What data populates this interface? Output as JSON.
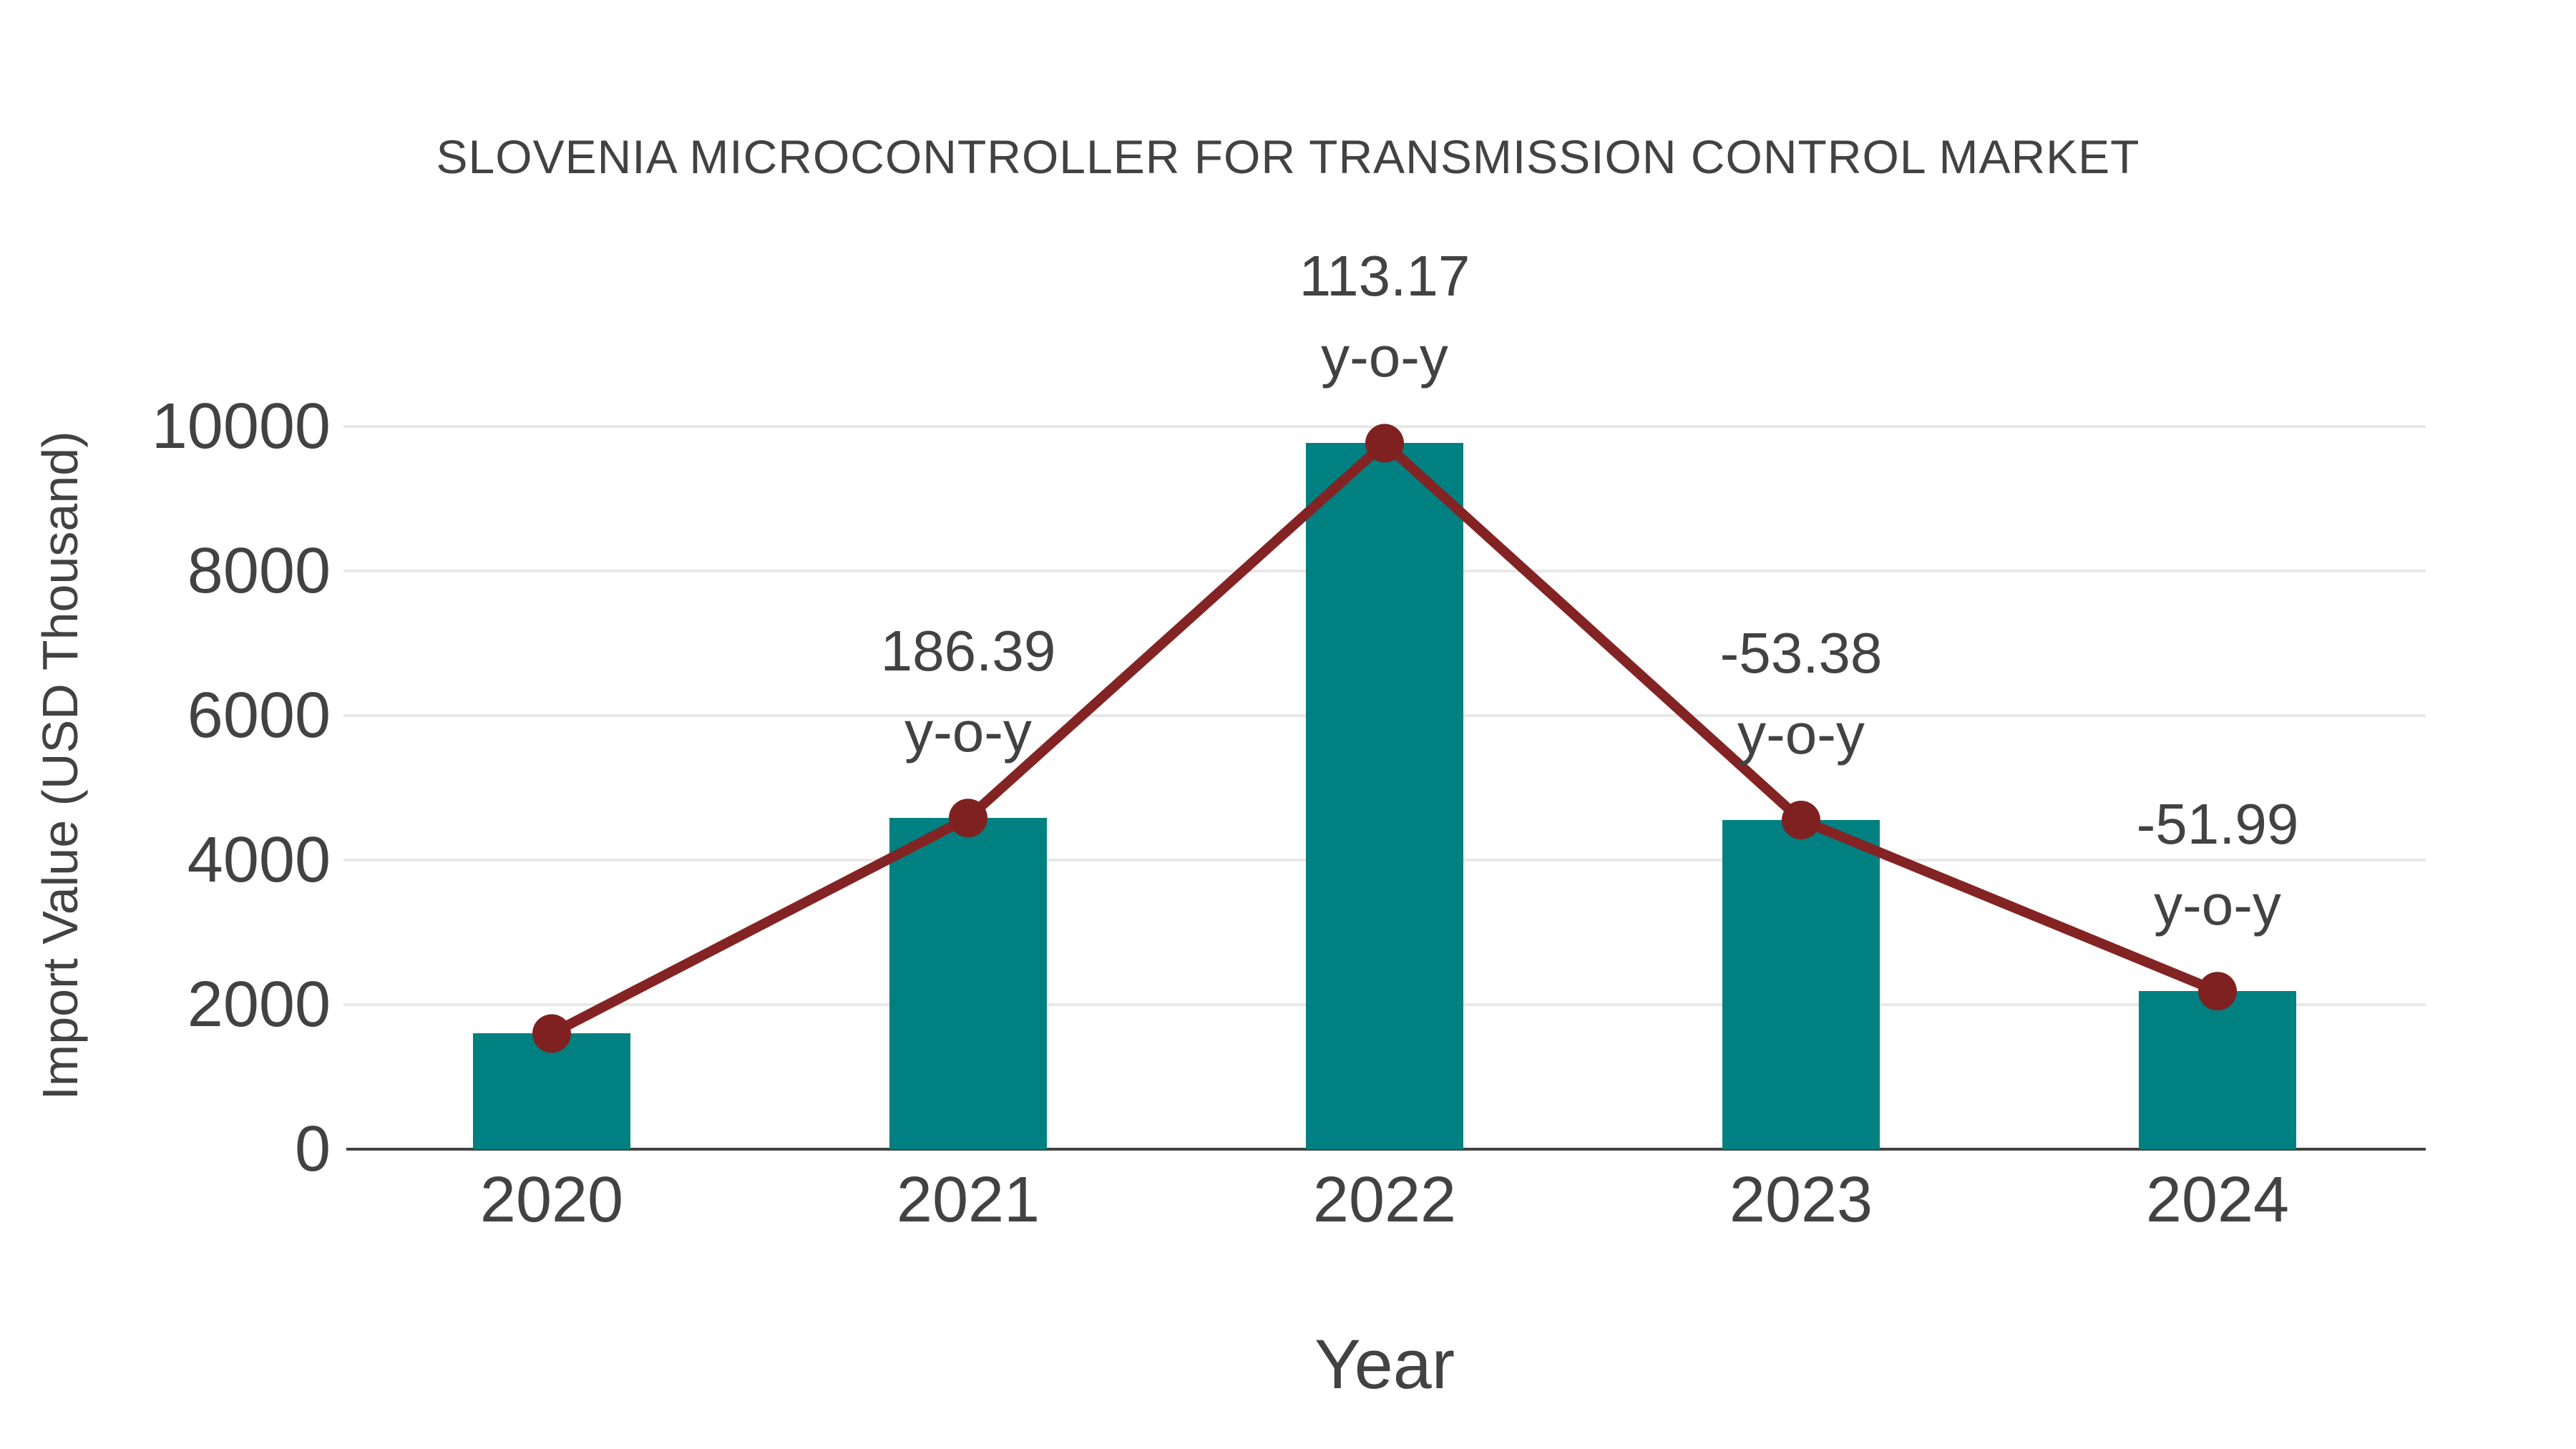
{
  "chart_data": {
    "type": "bar",
    "title": "SLOVENIA MICROCONTROLLER FOR TRANSMISSION CONTROL MARKET",
    "xlabel": "Year",
    "ylabel": "Import Value (USD Thousand)",
    "categories": [
      "2020",
      "2021",
      "2022",
      "2023",
      "2024"
    ],
    "series": [
      {
        "name": "Import Value",
        "type": "bar",
        "values": [
          1600,
          4582,
          9768,
          4554,
          2186
        ]
      },
      {
        "name": "y-o-y growth",
        "type": "line",
        "values": [
          1600,
          4582,
          9768,
          4554,
          2186
        ],
        "growth_percent": [
          null,
          186.39,
          113.17,
          -53.38,
          -51.99
        ]
      }
    ],
    "point_label_suffix": "y-o-y",
    "ylim": [
      0,
      10000
    ],
    "yticks": [
      0,
      2000,
      4000,
      6000,
      8000,
      10000
    ],
    "grid": true,
    "legend_position": "none",
    "colors": {
      "bar": "#008080",
      "line": "#842323",
      "marker": "#7f2121",
      "text": "#424242",
      "grid": "#e8e8e8",
      "axis": "#424242",
      "background": "#ffffff"
    }
  }
}
